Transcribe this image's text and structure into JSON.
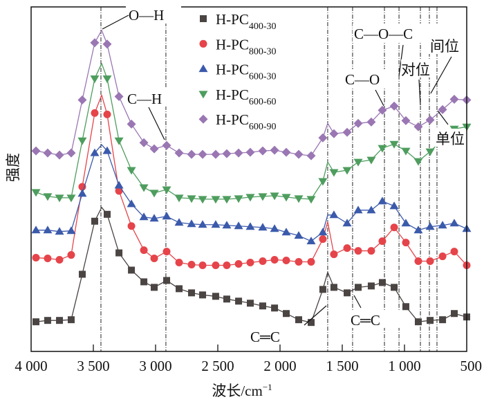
{
  "chart_data": {
    "type": "line",
    "title": "",
    "xlabel": "波长/cm⁻¹",
    "xlabel_main": "波长/cm",
    "xlabel_sup": "−1",
    "ylabel": "强度",
    "xlim": [
      4000,
      500
    ],
    "ylim": [
      0,
      100
    ],
    "xticks": [
      4000,
      3500,
      3000,
      2500,
      2000,
      1500,
      1000,
      500
    ],
    "xtick_labels": [
      "4 000",
      "3 500",
      "3 000",
      "2 500",
      "2 000",
      "1 500",
      "1 000",
      "500"
    ],
    "legend_position": "top-center",
    "x": [
      3961,
      3867,
      3772,
      3678,
      3589,
      3489,
      3433,
      3389,
      3294,
      3194,
      3094,
      3011,
      2911,
      2811,
      2711,
      2622,
      2517,
      2428,
      2333,
      2239,
      2139,
      2044,
      1950,
      1850,
      1750,
      1656,
      1617,
      1567,
      1461,
      1372,
      1267,
      1178,
      1083,
      989,
      889,
      794,
      694,
      600,
      500
    ],
    "series": [
      {
        "name": "H-PC",
        "sub": "400-30",
        "marker": "square",
        "color": "#4a4443",
        "values": [
          8.6,
          9,
          9,
          9.2,
          22.4,
          37.8,
          41.8,
          39.8,
          28.6,
          23.6,
          20.2,
          18.6,
          20.6,
          18.2,
          17,
          16.4,
          16,
          15.2,
          14.6,
          14,
          13.2,
          12.6,
          11,
          9.2,
          8.4,
          18,
          23,
          18.6,
          17,
          18.6,
          19,
          20,
          18.6,
          13,
          8.6,
          9,
          9.2,
          11,
          10
        ]
      },
      {
        "name": "H-PC",
        "sub": "800-30",
        "marker": "circle",
        "color": "#e5444a",
        "values": [
          27.2,
          27,
          26.6,
          28,
          47.8,
          69.2,
          74.4,
          68.8,
          46.6,
          36.4,
          29.4,
          27,
          29,
          25.8,
          25.2,
          25,
          25,
          25,
          25.4,
          25.8,
          26.2,
          26.6,
          26.4,
          26,
          26,
          32.6,
          37.6,
          28.2,
          30,
          29.2,
          29.2,
          32,
          36,
          31.6,
          26.2,
          26.2,
          27.6,
          29,
          25
        ]
      },
      {
        "name": "H-PC",
        "sub": "600-30",
        "marker": "triangle-up",
        "color": "#3b5aab",
        "values": [
          35.2,
          35.2,
          34.8,
          35,
          45.8,
          57.6,
          60,
          58.2,
          48.2,
          42.8,
          39,
          38.6,
          39.2,
          37.4,
          37,
          36.8,
          36.8,
          36.6,
          36.4,
          36.2,
          36,
          35.6,
          34.6,
          33.6,
          32,
          34.6,
          39.6,
          39.6,
          37.2,
          41,
          41,
          43.6,
          42.2,
          37.2,
          35.2,
          36.2,
          36.6,
          37.2,
          35.6
        ]
      },
      {
        "name": "H-PC",
        "sub": "600-60",
        "marker": "triangle-down",
        "color": "#4e9d5e",
        "values": [
          46.2,
          45,
          44.6,
          44.6,
          61.2,
          79.2,
          83.6,
          79.2,
          61.2,
          52.6,
          47.6,
          46,
          47,
          44.6,
          44.4,
          44.2,
          44.2,
          44.2,
          44.4,
          44.8,
          45,
          45.2,
          44.8,
          44.4,
          44.2,
          49.4,
          55,
          52,
          52.6,
          55,
          55.6,
          59,
          60.2,
          58.2,
          55.2,
          58,
          61.6,
          64.6,
          65.2
        ]
      },
      {
        "name": "H-PC",
        "sub": "600-90",
        "marker": "diamond",
        "color": "#9a76b3",
        "values": [
          58.2,
          57.6,
          57,
          57.6,
          73,
          89.6,
          93.2,
          89.2,
          74,
          66,
          60.6,
          58.8,
          59.8,
          57.6,
          57.2,
          57.2,
          57.2,
          57.4,
          57.6,
          57.8,
          58.2,
          58.4,
          57.8,
          57.2,
          56.8,
          62,
          66.2,
          63.2,
          63.6,
          66.2,
          66.6,
          70,
          71.2,
          67,
          65.2,
          67.2,
          70.2,
          73.2,
          73
        ]
      }
    ],
    "reference_lines": [
      3439,
      2917,
      1617,
      1417,
      1161,
      1044,
      872,
      800,
      739
    ],
    "annotations": [
      "O—H",
      "C—H",
      "C═C",
      "C═C",
      "C—O",
      "C—O—C",
      "对位",
      "间位",
      "单位"
    ]
  }
}
